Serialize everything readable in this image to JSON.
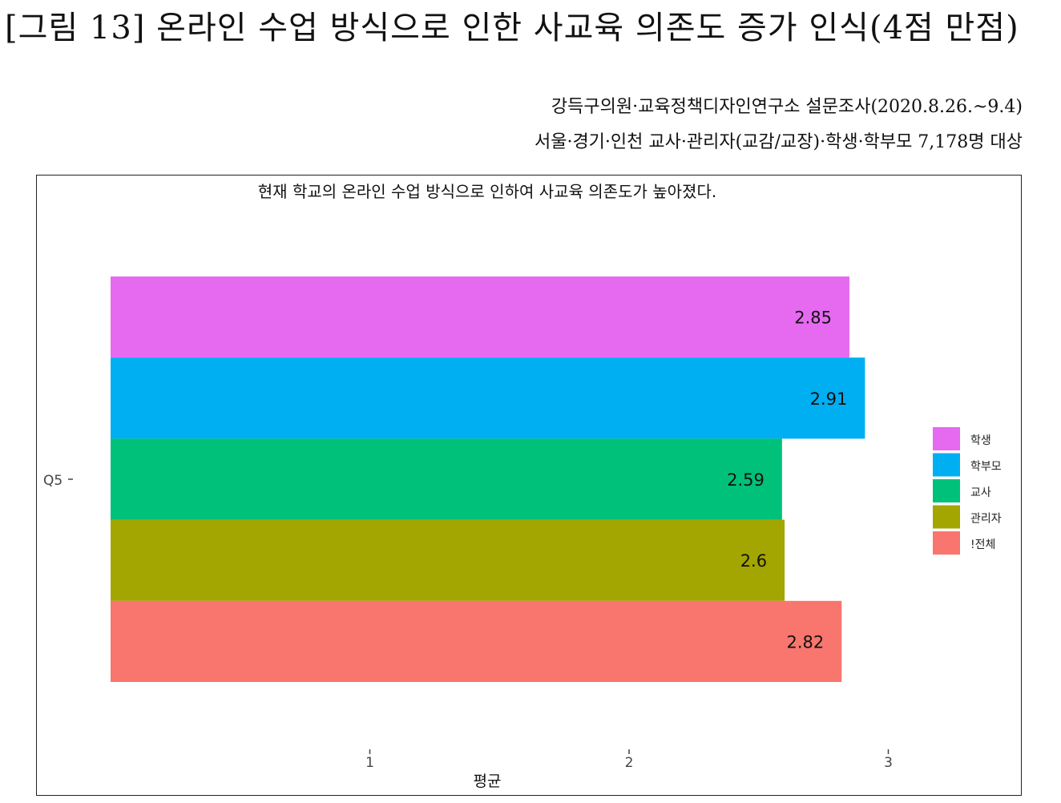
{
  "figure": {
    "title": "[그림 13] 온라인 수업 방식으로 인한 사교육 의존도 증가 인식(4점 만점)",
    "source_line1": "강득구의원·교육정책디자인연구소 설문조사(2020.8.26.~9.4)",
    "source_line2": "서울·경기·인천 교사·관리자(교감/교장)·학생·학부모 7,178명 대상"
  },
  "chart_data": {
    "type": "bar",
    "orientation": "horizontal",
    "title": "현재 학교의 온라인 수업 방식으로 인하여 사교육 의존도가 높아졌다.",
    "categories": [
      "Q5"
    ],
    "xlabel": "평균",
    "ylabel": "",
    "xticks": [
      1,
      2,
      3
    ],
    "xlim": [
      0,
      3.2
    ],
    "grid": false,
    "legend_position": "right",
    "series": [
      {
        "name": "학생",
        "values": [
          2.85
        ],
        "color": "#E56AF0",
        "label": "2.85"
      },
      {
        "name": "학부모",
        "values": [
          2.91
        ],
        "color": "#00AEF2",
        "label": "2.91"
      },
      {
        "name": "교사",
        "values": [
          2.59
        ],
        "color": "#00C17A",
        "label": "2.59"
      },
      {
        "name": "관리자",
        "values": [
          2.6
        ],
        "color": "#A3A500",
        "label": "2.6"
      },
      {
        "name": "!전체",
        "values": [
          2.82
        ],
        "color": "#F8766D",
        "label": "2.82"
      }
    ]
  }
}
